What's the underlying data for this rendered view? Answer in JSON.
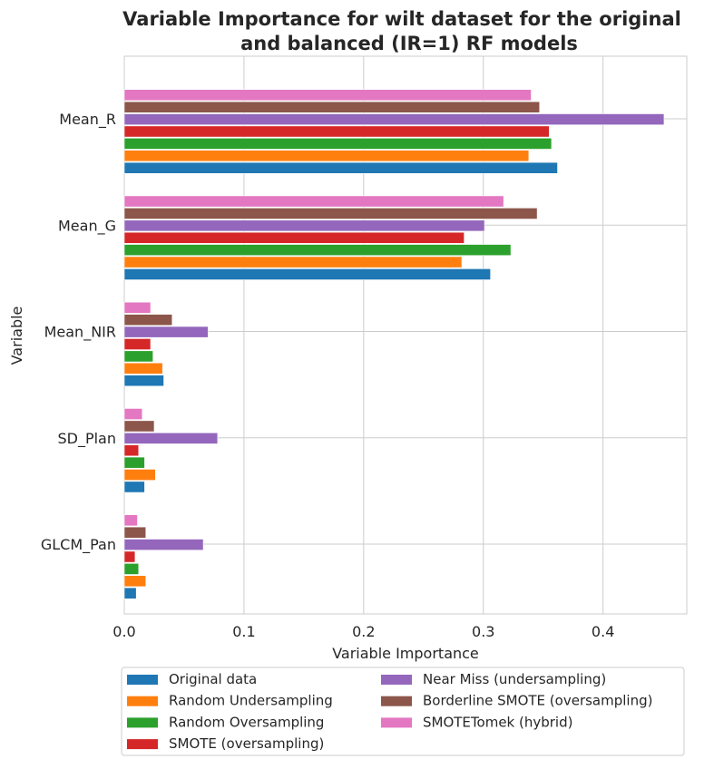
{
  "chart_data": {
    "type": "bar",
    "orientation": "horizontal",
    "title_line1": "Variable Importance for wilt dataset for the original",
    "title_line2": "and balanced (IR=1) RF models",
    "xlabel": "Variable Importance",
    "ylabel": "Variable",
    "xlim": [
      0,
      0.47
    ],
    "xticks": [
      "0.0",
      "0.1",
      "0.2",
      "0.3",
      "0.4"
    ],
    "grid": true,
    "legend_position": "bottom",
    "categories": [
      "Mean_R",
      "Mean_G",
      "Mean_NIR",
      "SD_Plan",
      "GLCM_Pan"
    ],
    "series": [
      {
        "name": "Original data",
        "color": "#1f77b4",
        "values": [
          0.362,
          0.306,
          0.033,
          0.017,
          0.01
        ]
      },
      {
        "name": "Random Undersampling",
        "color": "#ff7f0e",
        "values": [
          0.338,
          0.282,
          0.032,
          0.026,
          0.018
        ]
      },
      {
        "name": "Random Oversampling",
        "color": "#2ca02c",
        "values": [
          0.357,
          0.323,
          0.024,
          0.017,
          0.012
        ]
      },
      {
        "name": "SMOTE (oversampling)",
        "color": "#d62728",
        "values": [
          0.355,
          0.284,
          0.022,
          0.012,
          0.009
        ]
      },
      {
        "name": "Near Miss (undersampling)",
        "color": "#9467bd",
        "values": [
          0.451,
          0.301,
          0.07,
          0.078,
          0.066
        ]
      },
      {
        "name": "Borderline SMOTE (oversampling)",
        "color": "#8c564b",
        "values": [
          0.347,
          0.345,
          0.04,
          0.025,
          0.018
        ]
      },
      {
        "name": "SMOTETomek (hybrid)",
        "color": "#e377c2",
        "values": [
          0.34,
          0.317,
          0.022,
          0.015,
          0.011
        ]
      }
    ]
  }
}
